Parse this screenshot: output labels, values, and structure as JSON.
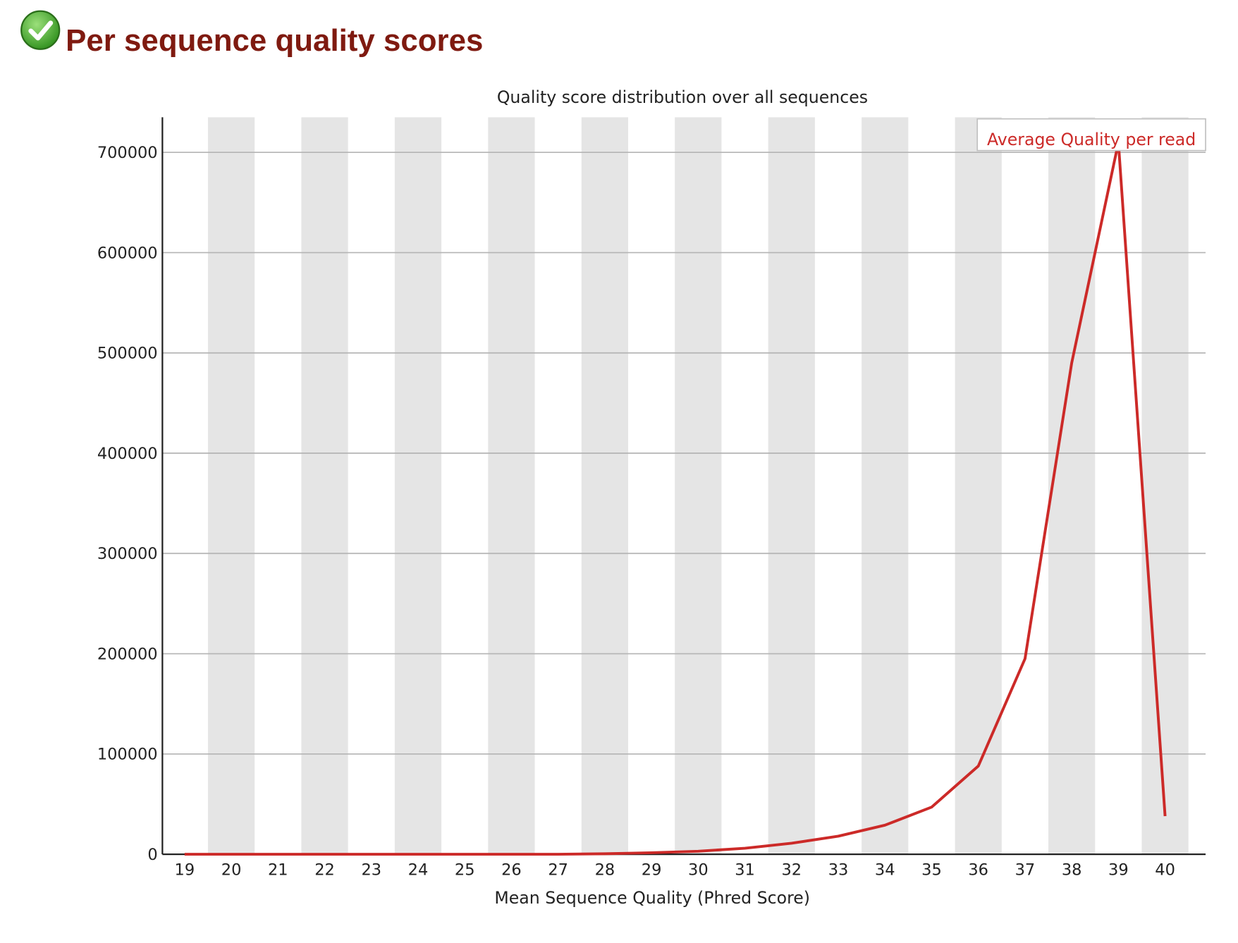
{
  "header": {
    "title": "Per sequence quality scores"
  },
  "chart_data": {
    "type": "line",
    "title": "Quality score distribution over all sequences",
    "x_label": "Mean Sequence Quality (Phred Score)",
    "categories": [
      "19",
      "20",
      "21",
      "22",
      "23",
      "24",
      "25",
      "26",
      "27",
      "28",
      "29",
      "30",
      "31",
      "32",
      "33",
      "34",
      "35",
      "36",
      "37",
      "38",
      "39",
      "40"
    ],
    "series": [
      {
        "name": "Average Quality per read",
        "color": "#cc2a28",
        "values": [
          0,
          0,
          0,
          0,
          0,
          0,
          0,
          0,
          0,
          500,
          1500,
          3000,
          6000,
          11000,
          18000,
          29000,
          47000,
          88000,
          195000,
          490000,
          710000,
          38000
        ]
      }
    ],
    "ylim": [
      0,
      735000
    ],
    "yticks": [
      0,
      100000,
      200000,
      300000,
      400000,
      500000,
      600000,
      700000
    ],
    "grid": true,
    "band_color": "#e5e5e5",
    "legend": "upper right"
  }
}
